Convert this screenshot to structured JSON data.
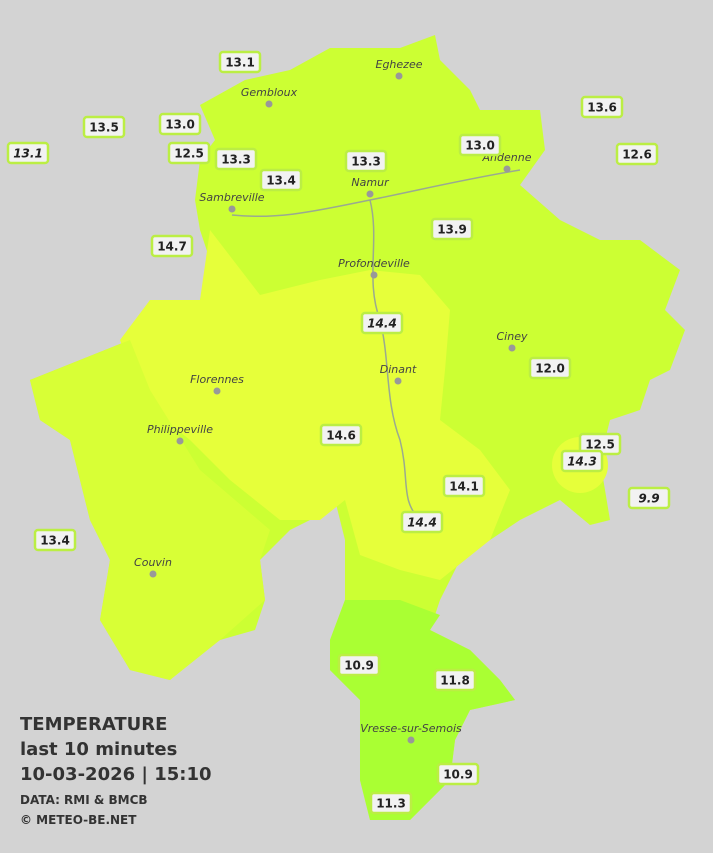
{
  "title": {
    "heading": "TEMPERATURE",
    "period": "last 10 minutes",
    "datetime": "10-03-2026  |  15:10",
    "source": "DATA: RMI & BMCB",
    "credit": "© METEO-BE.NET"
  },
  "towns": [
    "Eghezee",
    "Gembloux",
    "Andenne",
    "Namur",
    "Sambreville",
    "Profondeville",
    "Ciney",
    "Dinant",
    "Florennes",
    "Philippeville",
    "Couvin",
    "Vresse-sur-Semois"
  ],
  "stations": [
    {
      "label": "13.1",
      "italic": false
    },
    {
      "label": "13.5",
      "italic": false
    },
    {
      "label": "13.0",
      "italic": false
    },
    {
      "label": "13.1",
      "italic": true
    },
    {
      "label": "12.5",
      "italic": false
    },
    {
      "label": "13.3",
      "italic": false
    },
    {
      "label": "13.4",
      "italic": false
    },
    {
      "label": "13.3",
      "italic": false
    },
    {
      "label": "13.0",
      "italic": false
    },
    {
      "label": "13.6",
      "italic": false
    },
    {
      "label": "12.6",
      "italic": false
    },
    {
      "label": "13.9",
      "italic": false
    },
    {
      "label": "14.7",
      "italic": false
    },
    {
      "label": "14.4",
      "italic": true
    },
    {
      "label": "12.0",
      "italic": false
    },
    {
      "label": "14.6",
      "italic": false
    },
    {
      "label": "12.5",
      "italic": false
    },
    {
      "label": "14.3",
      "italic": true
    },
    {
      "label": "14.1",
      "italic": false
    },
    {
      "label": "9.9",
      "italic": true
    },
    {
      "label": "14.4",
      "italic": true
    },
    {
      "label": "13.4",
      "italic": false
    },
    {
      "label": "10.9",
      "italic": false
    },
    {
      "label": "11.8",
      "italic": false
    },
    {
      "label": "10.9",
      "italic": false
    },
    {
      "label": "11.3",
      "italic": false
    }
  ]
}
